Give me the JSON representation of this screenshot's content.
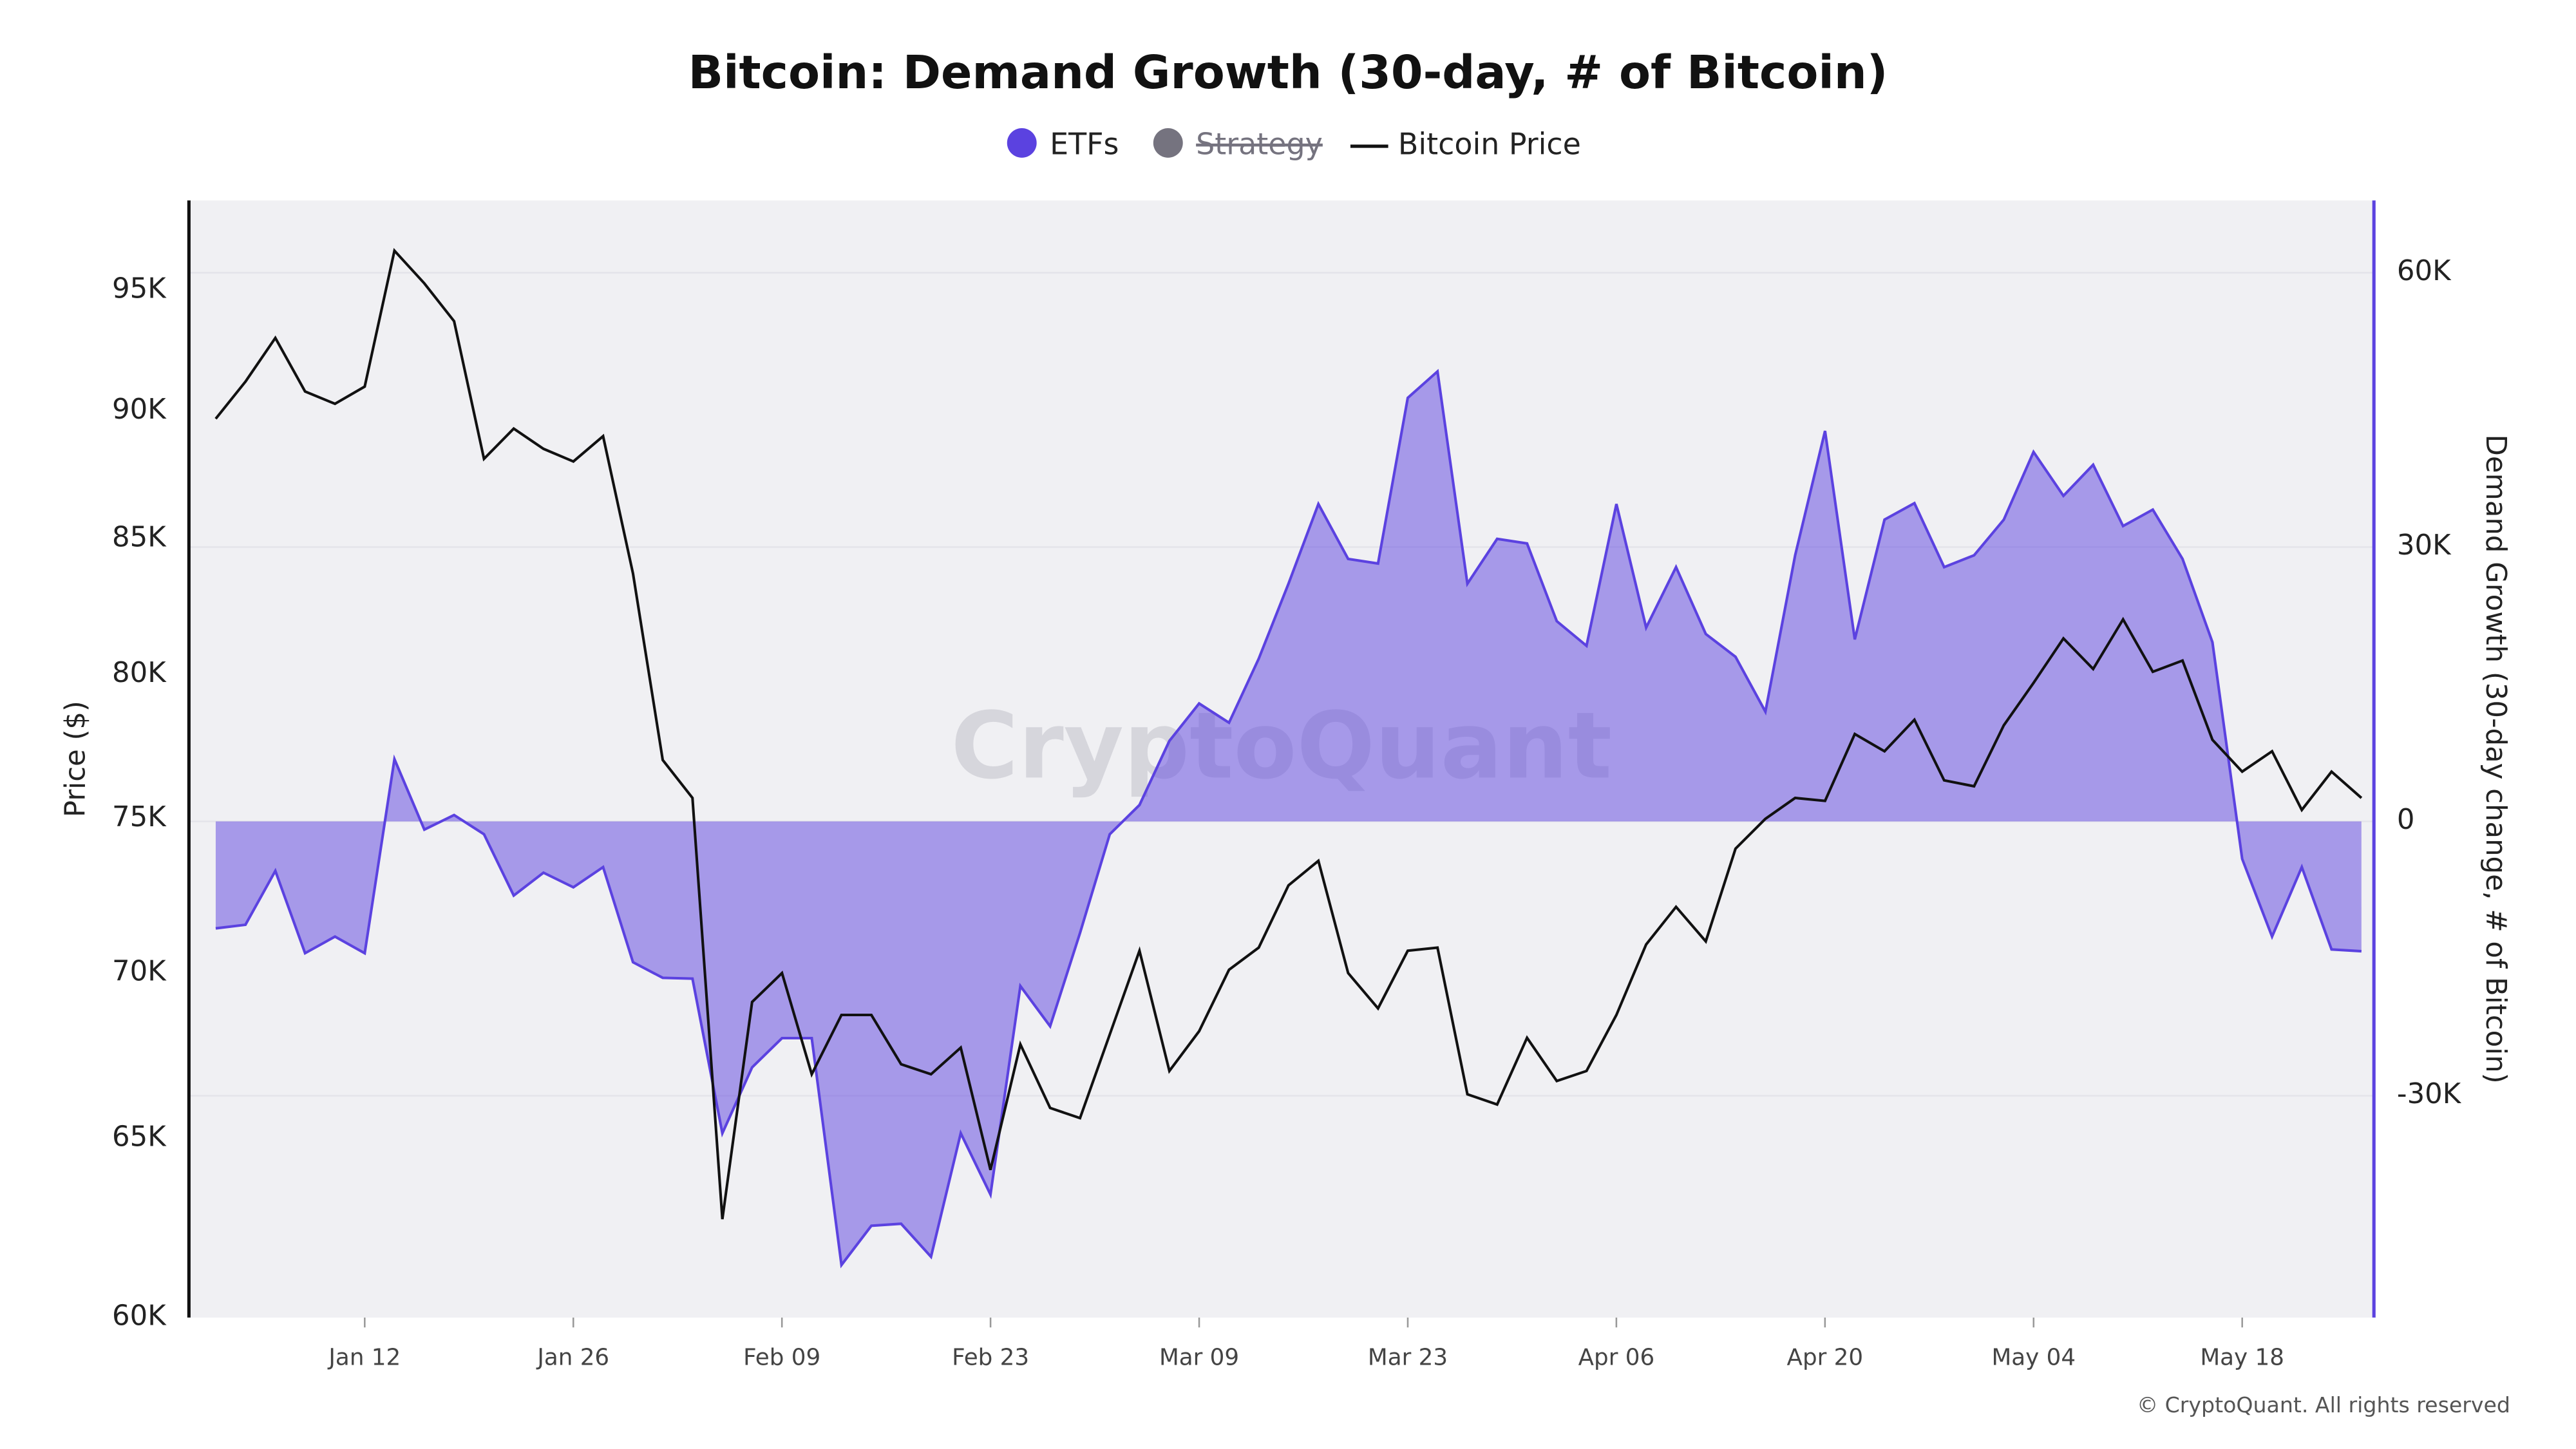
{
  "chart_data": {
    "type": "area-line",
    "title": "Bitcoin: Demand Growth (30-day, # of Bitcoin)",
    "y_label": "Price ($)",
    "y2_label": "Demand Growth (30-day change, # of Bitcoin)",
    "watermark": "CryptoQuant",
    "footer": "© CryptoQuant. All rights reserved",
    "categories": [
      "Jan 02",
      "Jan 04",
      "Jan 06",
      "Jan 08",
      "Jan 10",
      "Jan 12",
      "Jan 14",
      "Jan 16",
      "Jan 18",
      "Jan 20",
      "Jan 22",
      "Jan 24",
      "Jan 26",
      "Jan 28",
      "Jan 30",
      "Feb 01",
      "Feb 03",
      "Feb 05",
      "Feb 07",
      "Feb 09",
      "Feb 11",
      "Feb 13",
      "Feb 15",
      "Feb 17",
      "Feb 19",
      "Feb 21",
      "Feb 23",
      "Feb 25",
      "Feb 27",
      "Mar 01",
      "Mar 03",
      "Mar 05",
      "Mar 07",
      "Mar 09",
      "Mar 11",
      "Mar 13",
      "Mar 15",
      "Mar 17",
      "Mar 19",
      "Mar 21",
      "Mar 23",
      "Mar 25",
      "Mar 27",
      "Mar 29",
      "Mar 31",
      "Apr 02",
      "Apr 04",
      "Apr 06",
      "Apr 08",
      "Apr 10",
      "Apr 12",
      "Apr 14",
      "Apr 16",
      "Apr 18",
      "Apr 20",
      "Apr 22",
      "Apr 24",
      "Apr 26",
      "Apr 28",
      "Apr 30",
      "May 02",
      "May 04",
      "May 06",
      "May 08",
      "May 10",
      "May 12",
      "May 14",
      "May 16",
      "May 18",
      "May 20",
      "May 22",
      "May 24",
      "May 26"
    ],
    "xticks": [
      "Jan 12",
      "Jan 26",
      "Feb 09",
      "Feb 23",
      "Mar 09",
      "Mar 23",
      "Apr 06",
      "Apr 20",
      "May 04",
      "May 18"
    ],
    "series": [
      {
        "name": "ETFs",
        "type": "area",
        "axis": "y2",
        "color": "#5b42e0",
        "values": [
          -11700,
          -11300,
          -5400,
          -14400,
          -12600,
          -14400,
          6800,
          -900,
          700,
          -1400,
          -8100,
          -5600,
          -7200,
          -5000,
          -15400,
          -17100,
          -17200,
          -34100,
          -26900,
          -23700,
          -23700,
          -48500,
          -44200,
          -44000,
          -47600,
          -34100,
          -40800,
          -18000,
          -22400,
          -12200,
          -1400,
          1800,
          8800,
          12900,
          10800,
          17800,
          26000,
          34700,
          28700,
          28200,
          46300,
          49200,
          26000,
          30900,
          30400,
          21900,
          19200,
          34700,
          21200,
          27800,
          20500,
          18000,
          12000,
          29100,
          42700,
          19900,
          33000,
          34800,
          27800,
          29100,
          33000,
          40400,
          35600,
          39000,
          32300,
          34100,
          28700,
          19600,
          -4100,
          -12600,
          -5000,
          -14000,
          -14200
        ]
      },
      {
        "name": "Strategy",
        "color": "#75737f",
        "hidden": true
      },
      {
        "name": "Bitcoin Price",
        "type": "line",
        "axis": "y",
        "color": "#111111",
        "values": [
          89700,
          91200,
          93000,
          90800,
          90300,
          91000,
          96700,
          95300,
          93700,
          88100,
          89300,
          88500,
          88000,
          89000,
          83700,
          77000,
          75700,
          62700,
          69100,
          70000,
          66900,
          68700,
          68700,
          67200,
          66900,
          67700,
          64100,
          67800,
          65900,
          65600,
          68100,
          70700,
          67000,
          68200,
          70100,
          70800,
          72800,
          73600,
          70000,
          68900,
          70700,
          70800,
          66300,
          66000,
          68000,
          66700,
          67000,
          68700,
          70900,
          72100,
          71000,
          74000,
          75000,
          75700,
          75600,
          77900,
          77300,
          78400,
          76300,
          76100,
          78200,
          79700,
          81300,
          80200,
          82000,
          80100,
          80500,
          77700,
          76600,
          77300,
          75300,
          76600,
          75700
        ]
      }
    ],
    "ylog": true,
    "ylim": [
      60000,
      98900
    ],
    "yticks": [
      {
        "value": 60000,
        "label": "60K"
      },
      {
        "value": 65000,
        "label": "65K"
      },
      {
        "value": 70000,
        "label": "70K"
      },
      {
        "value": 75000,
        "label": "75K"
      },
      {
        "value": 80000,
        "label": "80K"
      },
      {
        "value": 85000,
        "label": "85K"
      },
      {
        "value": 90000,
        "label": "90K"
      },
      {
        "value": 95000,
        "label": "95K"
      }
    ],
    "y2lim": [
      -54250,
      67900
    ],
    "y2ticks": [
      {
        "value": -30000,
        "label": "-30K"
      },
      0,
      {
        "value": 30000,
        "label": "30K"
      },
      {
        "value": 60000,
        "label": "60K"
      }
    ],
    "grid": true
  }
}
